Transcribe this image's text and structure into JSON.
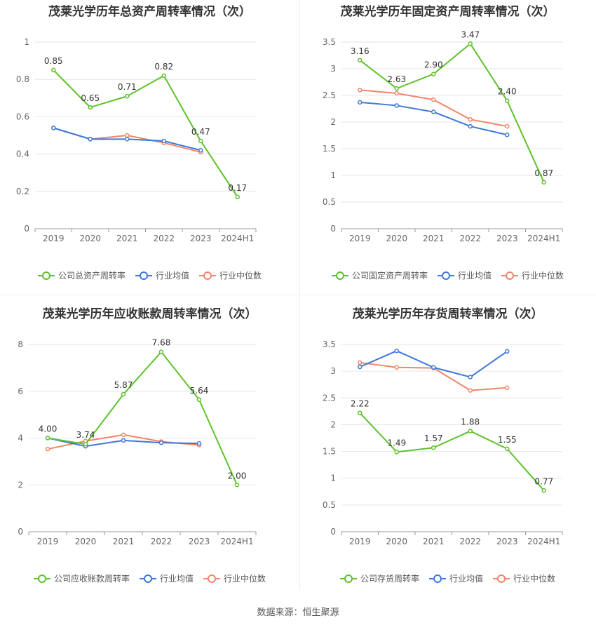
{
  "source": "数据来源：恒生聚源",
  "colors": {
    "company": "#5ec22c",
    "avg": "#3d78d8",
    "median": "#f0876a"
  },
  "chart_data": [
    {
      "type": "line",
      "title": "茂莱光学历年总资产周转率情况（次）",
      "categories": [
        "2019",
        "2020",
        "2021",
        "2022",
        "2023",
        "2024H1"
      ],
      "ylim": [
        0,
        1
      ],
      "yticks": [
        "0",
        "0.2",
        "0.4",
        "0.6",
        "0.8",
        "1"
      ],
      "ytick_values": [
        0,
        0.2,
        0.4,
        0.6,
        0.8,
        1
      ],
      "legend": "bottom",
      "series": [
        {
          "name": "公司总资产周转率",
          "key": "company",
          "values": [
            0.85,
            0.65,
            0.71,
            0.82,
            0.47,
            0.17
          ],
          "labels": [
            "0.85",
            "0.65",
            "0.71",
            "0.82",
            "0.47",
            "0.17"
          ]
        },
        {
          "name": "行业均值",
          "key": "avg",
          "values": [
            0.54,
            0.48,
            0.48,
            0.47,
            0.42,
            null
          ]
        },
        {
          "name": "行业中位数",
          "key": "median",
          "values": [
            0.54,
            0.48,
            0.5,
            0.46,
            0.41,
            null
          ]
        }
      ]
    },
    {
      "type": "line",
      "title": "茂莱光学历年固定资产周转率情况（次）",
      "categories": [
        "2019",
        "2020",
        "2021",
        "2022",
        "2023",
        "2024H1"
      ],
      "ylim": [
        0,
        3.5
      ],
      "yticks": [
        "0",
        "0.5",
        "1",
        "1.5",
        "2",
        "2.5",
        "3",
        "3.5"
      ],
      "ytick_values": [
        0,
        0.5,
        1,
        1.5,
        2,
        2.5,
        3,
        3.5
      ],
      "legend": "bottom",
      "series": [
        {
          "name": "公司固定资产周转率",
          "key": "company",
          "values": [
            3.16,
            2.63,
            2.9,
            3.47,
            2.4,
            0.87
          ],
          "labels": [
            "3.16",
            "2.63",
            "2.90",
            "3.47",
            "2.40",
            "0.87"
          ]
        },
        {
          "name": "行业均值",
          "key": "avg",
          "values": [
            2.37,
            2.31,
            2.19,
            1.92,
            1.76,
            null
          ]
        },
        {
          "name": "行业中位数",
          "key": "median",
          "values": [
            2.6,
            2.54,
            2.42,
            2.05,
            1.92,
            null
          ]
        }
      ]
    },
    {
      "type": "line",
      "title": "茂莱光学历年应收账款周转率情况（次）",
      "categories": [
        "2019",
        "2020",
        "2021",
        "2022",
        "2023",
        "2024H1"
      ],
      "ylim": [
        0,
        8
      ],
      "yticks": [
        "0",
        "2",
        "4",
        "6",
        "8"
      ],
      "ytick_values": [
        0,
        2,
        4,
        6,
        8
      ],
      "legend": "bottom",
      "series": [
        {
          "name": "公司应收账款周转率",
          "key": "company",
          "values": [
            4.0,
            3.74,
            5.87,
            7.68,
            5.64,
            2.0
          ],
          "labels": [
            "4.00",
            "3.74",
            "5.87",
            "7.68",
            "5.64",
            "2.00"
          ]
        },
        {
          "name": "行业均值",
          "key": "avg",
          "values": [
            4.0,
            3.65,
            3.9,
            3.8,
            3.77,
            null
          ]
        },
        {
          "name": "行业中位数",
          "key": "median",
          "values": [
            3.53,
            3.87,
            4.14,
            3.85,
            3.7,
            null
          ]
        }
      ]
    },
    {
      "type": "line",
      "title": "茂莱光学历年存货周转率情况（次）",
      "categories": [
        "2019",
        "2020",
        "2021",
        "2022",
        "2023",
        "2024H1"
      ],
      "ylim": [
        0,
        3.5
      ],
      "yticks": [
        "0",
        "0.5",
        "1",
        "1.5",
        "2",
        "2.5",
        "3",
        "3.5"
      ],
      "ytick_values": [
        0,
        0.5,
        1,
        1.5,
        2,
        2.5,
        3,
        3.5
      ],
      "legend": "bottom",
      "series": [
        {
          "name": "公司存货周转率",
          "key": "company",
          "values": [
            2.22,
            1.49,
            1.57,
            1.88,
            1.55,
            0.77
          ],
          "labels": [
            "2.22",
            "1.49",
            "1.57",
            "1.88",
            "1.55",
            "0.77"
          ]
        },
        {
          "name": "行业均值",
          "key": "avg",
          "values": [
            3.08,
            3.38,
            3.07,
            2.89,
            3.37,
            null
          ]
        },
        {
          "name": "行业中位数",
          "key": "median",
          "values": [
            3.16,
            3.07,
            3.06,
            2.64,
            2.69,
            null
          ]
        }
      ]
    }
  ]
}
